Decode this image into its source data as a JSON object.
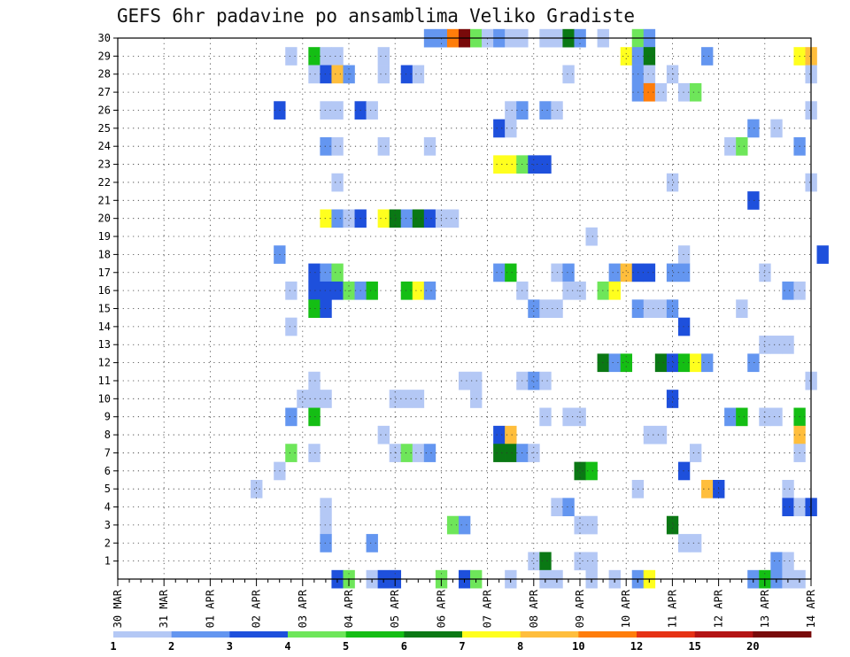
{
  "chart_data": {
    "type": "heatmap",
    "title": "GEFS 6hr padavine po ansamblima Veliko Gradiste",
    "xlabel": "",
    "ylabel": "",
    "x_tick_labels": [
      "30 MAR",
      "31 MAR",
      "01 APR",
      "02 APR",
      "03 APR",
      "04 APR",
      "05 APR",
      "06 APR",
      "07 APR",
      "08 APR",
      "09 APR",
      "10 APR",
      "11 APR",
      "12 APR",
      "13 APR",
      "14 APR"
    ],
    "y_tick_labels": [
      "1",
      "2",
      "3",
      "4",
      "5",
      "6",
      "7",
      "8",
      "9",
      "10",
      "11",
      "12",
      "13",
      "14",
      "15",
      "16",
      "17",
      "18",
      "19",
      "20",
      "21",
      "22",
      "23",
      "24",
      "25",
      "26",
      "27",
      "28",
      "29",
      "30"
    ],
    "x_unit": "6-hour step from 30 MAR 00Z (4 steps per day)",
    "xlim": [
      0,
      60
    ],
    "ylim": [
      0,
      30
    ],
    "grid": true,
    "legend_placement": "bottom",
    "legend": {
      "labels": [
        "1",
        "2",
        "3",
        "4",
        "5",
        "6",
        "7",
        "8",
        "10",
        "12",
        "15",
        "20"
      ],
      "colors": [
        "#b4c8f5",
        "#6496f0",
        "#1e50dc",
        "#6ee65a",
        "#14be14",
        "#0a7814",
        "#ffff1e",
        "#ffbe3c",
        "#ff7d0a",
        "#e63214",
        "#b41414",
        "#780a0a"
      ]
    },
    "cells": [
      [
        27,
        30,
        2
      ],
      [
        28,
        30,
        2
      ],
      [
        29,
        30,
        9
      ],
      [
        30,
        30,
        12
      ],
      [
        31,
        30,
        4
      ],
      [
        32,
        30,
        1
      ],
      [
        33,
        30,
        2
      ],
      [
        34,
        30,
        1
      ],
      [
        35,
        30,
        1
      ],
      [
        37,
        30,
        1
      ],
      [
        38,
        30,
        1
      ],
      [
        39,
        30,
        6
      ],
      [
        40,
        30,
        2
      ],
      [
        42,
        30,
        1
      ],
      [
        45,
        30,
        4
      ],
      [
        46,
        30,
        2
      ],
      [
        15,
        29,
        1
      ],
      [
        17,
        29,
        5
      ],
      [
        18,
        29,
        1
      ],
      [
        19,
        29,
        1
      ],
      [
        23,
        29,
        1
      ],
      [
        44,
        29,
        7
      ],
      [
        45,
        29,
        2
      ],
      [
        46,
        29,
        6
      ],
      [
        51,
        29,
        2
      ],
      [
        59,
        29,
        7
      ],
      [
        60,
        29,
        8
      ],
      [
        17,
        28,
        1
      ],
      [
        18,
        28,
        3
      ],
      [
        19,
        28,
        8
      ],
      [
        20,
        28,
        2
      ],
      [
        23,
        28,
        1
      ],
      [
        25,
        28,
        3
      ],
      [
        26,
        28,
        1
      ],
      [
        39,
        28,
        1
      ],
      [
        45,
        28,
        2
      ],
      [
        46,
        28,
        1
      ],
      [
        48,
        28,
        1
      ],
      [
        60,
        28,
        1
      ],
      [
        45,
        27,
        2
      ],
      [
        46,
        27,
        9
      ],
      [
        47,
        27,
        1
      ],
      [
        49,
        27,
        1
      ],
      [
        50,
        27,
        4
      ],
      [
        14,
        26,
        3
      ],
      [
        18,
        26,
        1
      ],
      [
        19,
        26,
        1
      ],
      [
        21,
        26,
        3
      ],
      [
        22,
        26,
        1
      ],
      [
        34,
        26,
        1
      ],
      [
        35,
        26,
        2
      ],
      [
        37,
        26,
        2
      ],
      [
        38,
        26,
        1
      ],
      [
        60,
        26,
        1
      ],
      [
        33,
        25,
        3
      ],
      [
        34,
        25,
        1
      ],
      [
        55,
        25,
        2
      ],
      [
        57,
        25,
        1
      ],
      [
        18,
        24,
        2
      ],
      [
        19,
        24,
        1
      ],
      [
        23,
        24,
        1
      ],
      [
        27,
        24,
        1
      ],
      [
        53,
        24,
        1
      ],
      [
        54,
        24,
        4
      ],
      [
        59,
        24,
        2
      ],
      [
        33,
        23,
        7
      ],
      [
        34,
        23,
        7
      ],
      [
        35,
        23,
        4
      ],
      [
        36,
        23,
        3
      ],
      [
        37,
        23,
        3
      ],
      [
        19,
        22,
        1
      ],
      [
        48,
        22,
        1
      ],
      [
        60,
        22,
        1
      ],
      [
        55,
        21,
        3
      ],
      [
        18,
        20,
        7
      ],
      [
        19,
        20,
        2
      ],
      [
        20,
        20,
        1
      ],
      [
        21,
        20,
        3
      ],
      [
        23,
        20,
        7
      ],
      [
        24,
        20,
        6
      ],
      [
        25,
        20,
        2
      ],
      [
        26,
        20,
        6
      ],
      [
        27,
        20,
        3
      ],
      [
        28,
        20,
        1
      ],
      [
        29,
        20,
        1
      ],
      [
        41,
        19,
        1
      ],
      [
        14,
        18,
        2
      ],
      [
        49,
        18,
        1
      ],
      [
        61,
        18,
        3
      ],
      [
        17,
        17,
        3
      ],
      [
        18,
        17,
        2
      ],
      [
        19,
        17,
        4
      ],
      [
        33,
        17,
        2
      ],
      [
        34,
        17,
        5
      ],
      [
        38,
        17,
        1
      ],
      [
        39,
        17,
        2
      ],
      [
        43,
        17,
        2
      ],
      [
        44,
        17,
        8
      ],
      [
        45,
        17,
        3
      ],
      [
        46,
        17,
        3
      ],
      [
        48,
        17,
        2
      ],
      [
        49,
        17,
        2
      ],
      [
        56,
        17,
        1
      ],
      [
        15,
        16,
        1
      ],
      [
        17,
        16,
        3
      ],
      [
        18,
        16,
        3
      ],
      [
        19,
        16,
        3
      ],
      [
        20,
        16,
        4
      ],
      [
        21,
        16,
        2
      ],
      [
        22,
        16,
        5
      ],
      [
        25,
        16,
        5
      ],
      [
        26,
        16,
        7
      ],
      [
        27,
        16,
        2
      ],
      [
        35,
        16,
        1
      ],
      [
        39,
        16,
        1
      ],
      [
        40,
        16,
        1
      ],
      [
        42,
        16,
        4
      ],
      [
        43,
        16,
        7
      ],
      [
        58,
        16,
        2
      ],
      [
        59,
        16,
        1
      ],
      [
        17,
        15,
        5
      ],
      [
        18,
        15,
        3
      ],
      [
        36,
        15,
        2
      ],
      [
        37,
        15,
        1
      ],
      [
        38,
        15,
        1
      ],
      [
        45,
        15,
        2
      ],
      [
        46,
        15,
        1
      ],
      [
        47,
        15,
        1
      ],
      [
        48,
        15,
        2
      ],
      [
        54,
        15,
        1
      ],
      [
        15,
        14,
        1
      ],
      [
        49,
        14,
        3
      ],
      [
        56,
        13,
        1
      ],
      [
        57,
        13,
        1
      ],
      [
        58,
        13,
        1
      ],
      [
        42,
        12,
        6
      ],
      [
        43,
        12,
        2
      ],
      [
        44,
        12,
        5
      ],
      [
        47,
        12,
        6
      ],
      [
        48,
        12,
        3
      ],
      [
        49,
        12,
        5
      ],
      [
        50,
        12,
        7
      ],
      [
        51,
        12,
        2
      ],
      [
        55,
        12,
        2
      ],
      [
        17,
        11,
        1
      ],
      [
        30,
        11,
        1
      ],
      [
        31,
        11,
        1
      ],
      [
        35,
        11,
        1
      ],
      [
        36,
        11,
        2
      ],
      [
        37,
        11,
        1
      ],
      [
        60,
        11,
        1
      ],
      [
        16,
        10,
        1
      ],
      [
        17,
        10,
        1
      ],
      [
        18,
        10,
        1
      ],
      [
        24,
        10,
        1
      ],
      [
        25,
        10,
        1
      ],
      [
        26,
        10,
        1
      ],
      [
        31,
        10,
        1
      ],
      [
        48,
        10,
        3
      ],
      [
        15,
        9,
        2
      ],
      [
        17,
        9,
        5
      ],
      [
        37,
        9,
        1
      ],
      [
        39,
        9,
        1
      ],
      [
        40,
        9,
        1
      ],
      [
        53,
        9,
        2
      ],
      [
        54,
        9,
        5
      ],
      [
        56,
        9,
        1
      ],
      [
        57,
        9,
        1
      ],
      [
        59,
        9,
        5
      ],
      [
        23,
        8,
        1
      ],
      [
        33,
        8,
        3
      ],
      [
        34,
        8,
        8
      ],
      [
        46,
        8,
        1
      ],
      [
        47,
        8,
        1
      ],
      [
        59,
        8,
        8
      ],
      [
        15,
        7,
        4
      ],
      [
        17,
        7,
        1
      ],
      [
        24,
        7,
        1
      ],
      [
        25,
        7,
        4
      ],
      [
        26,
        7,
        1
      ],
      [
        27,
        7,
        2
      ],
      [
        33,
        7,
        6
      ],
      [
        34,
        7,
        6
      ],
      [
        35,
        7,
        2
      ],
      [
        36,
        7,
        1
      ],
      [
        50,
        7,
        1
      ],
      [
        59,
        7,
        1
      ],
      [
        14,
        6,
        1
      ],
      [
        40,
        6,
        6
      ],
      [
        41,
        6,
        5
      ],
      [
        49,
        6,
        3
      ],
      [
        12,
        5,
        1
      ],
      [
        45,
        5,
        1
      ],
      [
        51,
        5,
        8
      ],
      [
        52,
        5,
        3
      ],
      [
        58,
        5,
        1
      ],
      [
        18,
        4,
        1
      ],
      [
        38,
        4,
        1
      ],
      [
        39,
        4,
        2
      ],
      [
        58,
        4,
        3
      ],
      [
        59,
        4,
        1
      ],
      [
        60,
        4,
        3
      ],
      [
        18,
        3,
        1
      ],
      [
        29,
        3,
        4
      ],
      [
        30,
        3,
        2
      ],
      [
        40,
        3,
        1
      ],
      [
        41,
        3,
        1
      ],
      [
        48,
        3,
        6
      ],
      [
        18,
        2,
        2
      ],
      [
        22,
        2,
        2
      ],
      [
        49,
        2,
        1
      ],
      [
        50,
        2,
        1
      ],
      [
        36,
        1,
        1
      ],
      [
        37,
        1,
        6
      ],
      [
        40,
        1,
        1
      ],
      [
        41,
        1,
        1
      ],
      [
        57,
        1,
        2
      ],
      [
        58,
        1,
        1
      ],
      [
        19,
        0,
        3
      ],
      [
        20,
        0,
        4
      ],
      [
        22,
        0,
        1
      ],
      [
        23,
        0,
        3
      ],
      [
        24,
        0,
        3
      ],
      [
        28,
        0,
        4
      ],
      [
        30,
        0,
        3
      ],
      [
        31,
        0,
        4
      ],
      [
        34,
        0,
        1
      ],
      [
        37,
        0,
        1
      ],
      [
        38,
        0,
        1
      ],
      [
        41,
        0,
        1
      ],
      [
        43,
        0,
        1
      ],
      [
        45,
        0,
        2
      ],
      [
        46,
        0,
        7
      ],
      [
        55,
        0,
        2
      ],
      [
        56,
        0,
        5
      ],
      [
        57,
        0,
        2
      ],
      [
        58,
        0,
        1
      ],
      [
        59,
        0,
        1
      ]
    ]
  }
}
